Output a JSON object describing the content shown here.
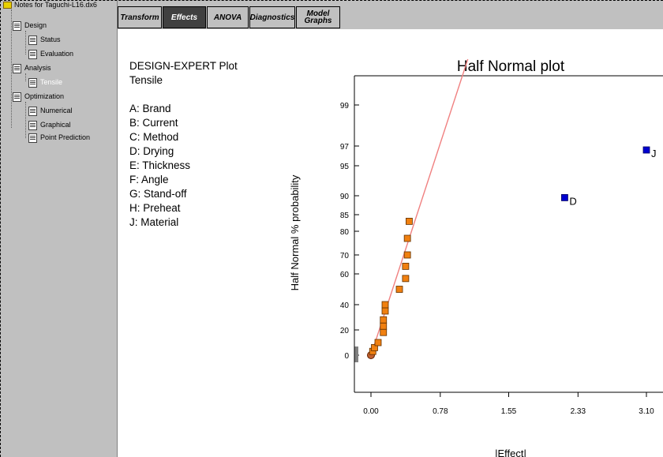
{
  "sidebar": {
    "root_label": "Notes for Taguchi-L16.dx6",
    "items": [
      {
        "label": "Design"
      },
      {
        "label": "Status"
      },
      {
        "label": "Evaluation"
      },
      {
        "label": "Analysis"
      },
      {
        "label": "Tensile"
      },
      {
        "label": "Optimization"
      },
      {
        "label": "Numerical"
      },
      {
        "label": "Graphical"
      },
      {
        "label": "Point Prediction"
      }
    ]
  },
  "tabs": [
    {
      "label": "Transform"
    },
    {
      "label": "Effects"
    },
    {
      "label": "ANOVA"
    },
    {
      "label": "Diagnostics"
    },
    {
      "label": "Model Graphs"
    }
  ],
  "plot_info": {
    "heading": "DESIGN-EXPERT Plot",
    "response": "Tensile",
    "factors": [
      "A: Brand",
      "B: Current",
      "C: Method",
      "D: Drying",
      "E: Thickness",
      "F: Angle",
      "G: Stand-off",
      "H: Preheat",
      "J: Material"
    ]
  },
  "chart_data": {
    "type": "scatter",
    "title": "Half Normal plot",
    "xlabel": "|Effect|",
    "ylabel": "Half Normal % probability",
    "xticks": [
      "0.00",
      "0.78",
      "1.55",
      "2.33",
      "3.10"
    ],
    "yticks": [
      "0",
      "20",
      "40",
      "60",
      "70",
      "80",
      "85",
      "90",
      "95",
      "97",
      "99"
    ],
    "xlim": [
      0,
      3.2
    ],
    "series": [
      {
        "kind": "error_terms",
        "color": "#f08010",
        "points": [
          {
            "x": 0.02,
            "y": 3
          },
          {
            "x": 0.04,
            "y": 6
          },
          {
            "x": 0.08,
            "y": 10
          },
          {
            "x": 0.14,
            "y": 18
          },
          {
            "x": 0.14,
            "y": 23
          },
          {
            "x": 0.14,
            "y": 28
          },
          {
            "x": 0.16,
            "y": 35
          },
          {
            "x": 0.16,
            "y": 40
          },
          {
            "x": 0.32,
            "y": 50
          },
          {
            "x": 0.39,
            "y": 57
          },
          {
            "x": 0.39,
            "y": 64
          },
          {
            "x": 0.41,
            "y": 70
          },
          {
            "x": 0.41,
            "y": 77
          },
          {
            "x": 0.43,
            "y": 83
          }
        ]
      },
      {
        "kind": "significant_effects",
        "color": "#0000d0",
        "points": [
          {
            "x": 2.18,
            "y": 89.5,
            "label": "D"
          },
          {
            "x": 3.1,
            "y": 96.6,
            "label": "J"
          }
        ]
      }
    ],
    "fit_line": {
      "color": "#f08080",
      "from": {
        "x": 0,
        "y": 0
      },
      "to": {
        "x": 1.09,
        "y": 100
      }
    },
    "colors": {
      "error": "#f08010",
      "effect": "#0000d0",
      "line": "#f08080"
    }
  }
}
